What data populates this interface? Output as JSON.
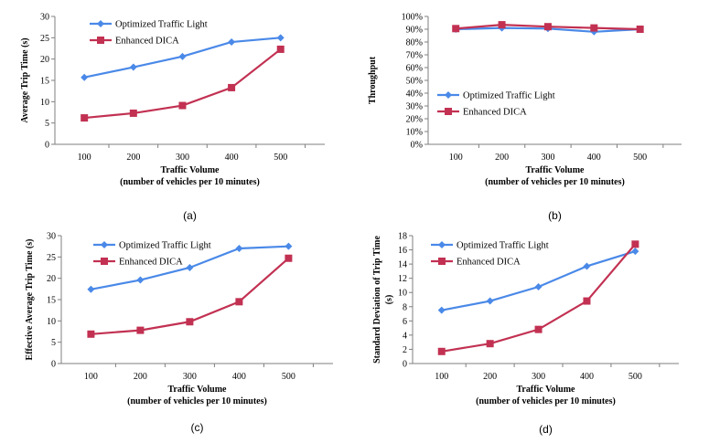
{
  "chart_data": [
    {
      "id": "a",
      "type": "line",
      "caption": "(a)",
      "categories": [
        "100",
        "200",
        "300",
        "400",
        "500"
      ],
      "series": [
        {
          "name": "Optimized Traffic Light",
          "color": "#4a89e8",
          "marker": "diamond",
          "values": [
            15.7,
            18.1,
            20.6,
            24.0,
            25.0
          ]
        },
        {
          "name": "Enhanced DICA",
          "color": "#c23152",
          "marker": "square",
          "values": [
            6.2,
            7.3,
            9.1,
            13.3,
            22.3
          ]
        }
      ],
      "ylim": [
        0,
        30
      ],
      "yticks": [
        0,
        5,
        10,
        15,
        20,
        25,
        30
      ],
      "ytick_labels": [
        "0",
        "5",
        "10",
        "15",
        "20",
        "25",
        "30"
      ],
      "ylabel": "Average Trip Time (s)",
      "xlabel": "Traffic Volume",
      "xlabel2": "(number of vehicles per 10 minutes)"
    },
    {
      "id": "b",
      "type": "line",
      "caption": "(b)",
      "categories": [
        "100",
        "200",
        "300",
        "400",
        "500"
      ],
      "series": [
        {
          "name": "Optimized Traffic Light",
          "color": "#4a89e8",
          "marker": "diamond",
          "values": [
            0.9,
            0.91,
            0.905,
            0.88,
            0.9
          ]
        },
        {
          "name": "Enhanced DICA",
          "color": "#c23152",
          "marker": "square",
          "values": [
            0.905,
            0.935,
            0.92,
            0.91,
            0.9
          ]
        }
      ],
      "ylim": [
        0,
        1.0
      ],
      "yticks": [
        0,
        0.1,
        0.2,
        0.3,
        0.4,
        0.5,
        0.6,
        0.7,
        0.8,
        0.9,
        1.0
      ],
      "ytick_labels": [
        "0%",
        "10%",
        "20%",
        "30%",
        "40%",
        "50%",
        "60%",
        "70%",
        "80%",
        "90%",
        "100%"
      ],
      "ylabel": "Throughput",
      "xlabel": "Traffic Volume",
      "xlabel2": "(number of vehicles per 10 minutes)"
    },
    {
      "id": "c",
      "type": "line",
      "caption": "(c)",
      "categories": [
        "100",
        "200",
        "300",
        "400",
        "500"
      ],
      "series": [
        {
          "name": "Optimized Traffic Light",
          "color": "#4a89e8",
          "marker": "diamond",
          "values": [
            17.4,
            19.6,
            22.5,
            27.0,
            27.5
          ]
        },
        {
          "name": "Enhanced DICA",
          "color": "#c23152",
          "marker": "square",
          "values": [
            6.9,
            7.8,
            9.8,
            14.5,
            24.7
          ]
        }
      ],
      "ylim": [
        0,
        30
      ],
      "yticks": [
        0,
        5,
        10,
        15,
        20,
        25,
        30
      ],
      "ytick_labels": [
        "0",
        "5",
        "10",
        "15",
        "20",
        "25",
        "30"
      ],
      "ylabel": "Effective Average Trip Time (s)",
      "xlabel": "Traffic Volume",
      "xlabel2": "(number of vehicles per 10 minutes)"
    },
    {
      "id": "d",
      "type": "line",
      "caption": "(d)",
      "categories": [
        "100",
        "200",
        "300",
        "400",
        "500"
      ],
      "series": [
        {
          "name": "Optimized Traffic Light",
          "color": "#4a89e8",
          "marker": "diamond",
          "values": [
            7.5,
            8.8,
            10.8,
            13.7,
            15.8
          ]
        },
        {
          "name": "Enhanced DICA",
          "color": "#c23152",
          "marker": "square",
          "values": [
            1.7,
            2.8,
            4.8,
            8.8,
            16.8
          ]
        }
      ],
      "ylim": [
        0,
        18
      ],
      "yticks": [
        0,
        2,
        4,
        6,
        8,
        10,
        12,
        14,
        16,
        18
      ],
      "ytick_labels": [
        "0",
        "2",
        "4",
        "6",
        "8",
        "10",
        "12",
        "14",
        "16",
        "18"
      ],
      "ylabel": "Standard Deviation of Trip Time",
      "ylabel2": "(s)",
      "xlabel": "Traffic Volume",
      "xlabel2": "(number of vehicles per 10 minutes)"
    }
  ]
}
